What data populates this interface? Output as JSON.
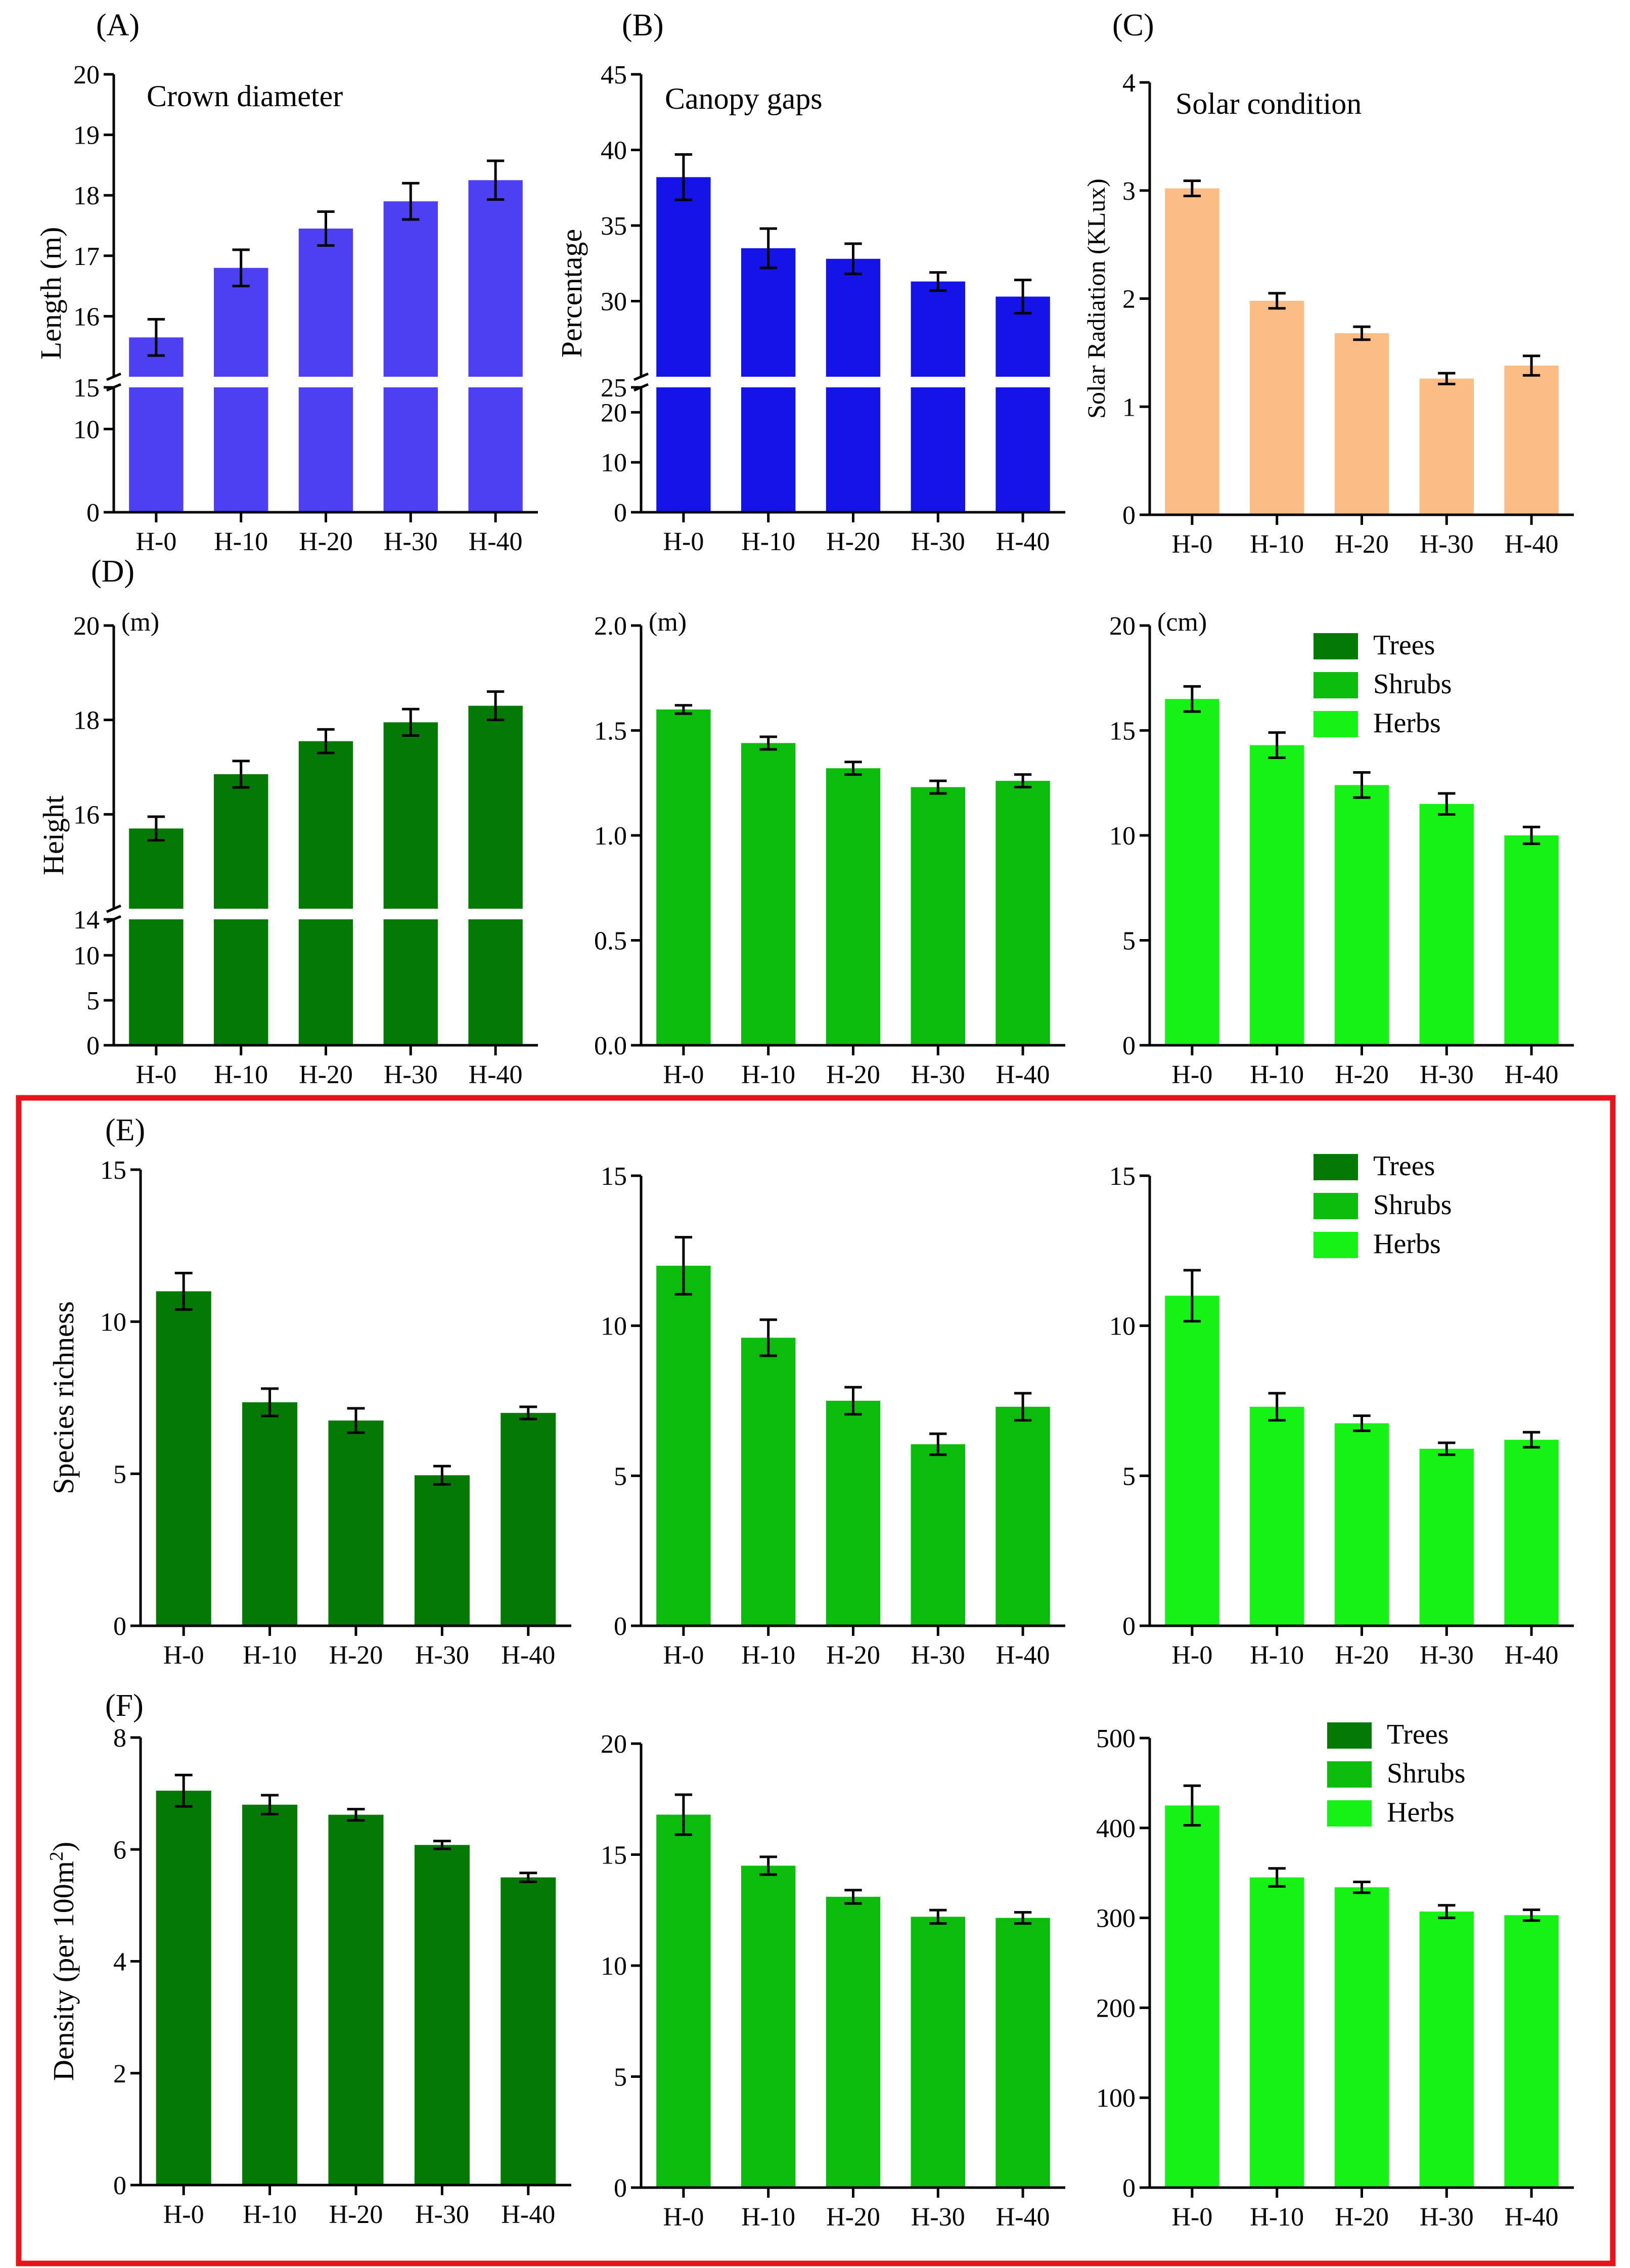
{
  "categories": [
    "H-0",
    "H-10",
    "H-20",
    "H-30",
    "H-40"
  ],
  "legend": {
    "items": [
      "Trees",
      "Shrubs",
      "Herbs"
    ],
    "colors": [
      "#047a04",
      "#0cbc0c",
      "#16f216"
    ]
  },
  "highlight_color": "#e8141c",
  "chart_data": [
    {
      "id": "A",
      "type": "bar",
      "letter": "(A)",
      "title": "Crown diameter",
      "ylabel": "Length (m)",
      "unit": "",
      "color": "#4c40f2",
      "values": [
        15.65,
        16.8,
        17.45,
        17.9,
        18.25
      ],
      "errors": [
        0.3,
        0.3,
        0.28,
        0.3,
        0.32
      ],
      "broken": true,
      "ylim_low": [
        0,
        15
      ],
      "ticks_low": [
        0,
        10
      ],
      "ylim_high": [
        15,
        20
      ],
      "ticks_high": [
        15,
        16,
        17,
        18,
        19,
        20
      ],
      "tick_decimals": 0
    },
    {
      "id": "B",
      "type": "bar",
      "letter": "(B)",
      "title": "Canopy gaps",
      "ylabel": "Percentage",
      "unit": "",
      "color": "#1414e8",
      "values": [
        38.2,
        33.5,
        32.8,
        31.3,
        30.3
      ],
      "errors": [
        1.5,
        1.3,
        1.0,
        0.6,
        1.1
      ],
      "broken": true,
      "ylim_low": [
        0,
        25
      ],
      "ticks_low": [
        0,
        10,
        20
      ],
      "ylim_high": [
        25,
        45
      ],
      "ticks_high": [
        25,
        30,
        35,
        40,
        45
      ],
      "tick_decimals": 0
    },
    {
      "id": "C",
      "type": "bar",
      "letter": "(C)",
      "title": "Solar condition",
      "ylabel": "Solar Radiation (KLux)",
      "unit": "",
      "color": "#fcbd84",
      "values": [
        3.02,
        1.98,
        1.68,
        1.26,
        1.38
      ],
      "errors": [
        0.07,
        0.07,
        0.06,
        0.05,
        0.09
      ],
      "broken": false,
      "ylim": [
        0,
        4
      ],
      "ticks": [
        0,
        1,
        2,
        3,
        4
      ],
      "tick_decimals": 0
    },
    {
      "id": "D1",
      "type": "bar",
      "letter": "(D)",
      "title": "",
      "ylabel": "Height",
      "unit": "(m)",
      "color": "#047a04",
      "values": [
        15.7,
        16.85,
        17.55,
        17.95,
        18.3
      ],
      "errors": [
        0.25,
        0.28,
        0.25,
        0.28,
        0.3
      ],
      "broken": true,
      "ylim_low": [
        0,
        14
      ],
      "ticks_low": [
        0,
        5,
        10
      ],
      "ylim_high": [
        14,
        20
      ],
      "ticks_high": [
        14,
        16,
        18,
        20
      ],
      "tick_decimals": 0
    },
    {
      "id": "D2",
      "type": "bar",
      "letter": "",
      "title": "",
      "ylabel": "",
      "unit": "(m)",
      "color": "#0cbc0c",
      "values": [
        1.6,
        1.44,
        1.32,
        1.23,
        1.26
      ],
      "errors": [
        0.02,
        0.03,
        0.03,
        0.03,
        0.03
      ],
      "broken": false,
      "ylim": [
        0,
        2
      ],
      "ticks": [
        0,
        0.5,
        1,
        1.5,
        2
      ],
      "tick_decimals": 1
    },
    {
      "id": "D3",
      "type": "bar",
      "letter": "",
      "title": "",
      "ylabel": "",
      "unit": "(cm)",
      "color": "#16f216",
      "values": [
        16.5,
        14.3,
        12.4,
        11.5,
        10.0
      ],
      "errors": [
        0.6,
        0.6,
        0.6,
        0.5,
        0.4
      ],
      "broken": false,
      "ylim": [
        0,
        20
      ],
      "ticks": [
        0,
        5,
        10,
        15,
        20
      ],
      "tick_decimals": 0,
      "legend": true
    },
    {
      "id": "E1",
      "type": "bar",
      "letter": "(E)",
      "title": "",
      "ylabel": "Species richness",
      "unit": "",
      "color": "#047a04",
      "values": [
        11.0,
        7.35,
        6.75,
        4.95,
        7.0
      ],
      "errors": [
        0.6,
        0.45,
        0.4,
        0.3,
        0.2
      ],
      "broken": false,
      "ylim": [
        0,
        15
      ],
      "ticks": [
        0,
        5,
        10,
        15
      ],
      "tick_decimals": 0
    },
    {
      "id": "E2",
      "type": "bar",
      "letter": "",
      "title": "",
      "ylabel": "",
      "unit": "",
      "color": "#0cbc0c",
      "values": [
        12.0,
        9.6,
        7.5,
        6.05,
        7.3
      ],
      "errors": [
        0.95,
        0.6,
        0.45,
        0.35,
        0.45
      ],
      "broken": false,
      "ylim": [
        0,
        15
      ],
      "ticks": [
        0,
        5,
        10,
        15
      ],
      "tick_decimals": 0
    },
    {
      "id": "E3",
      "type": "bar",
      "letter": "",
      "title": "",
      "ylabel": "",
      "unit": "",
      "color": "#16f216",
      "values": [
        11.0,
        7.3,
        6.75,
        5.9,
        6.2
      ],
      "errors": [
        0.85,
        0.45,
        0.25,
        0.2,
        0.25
      ],
      "broken": false,
      "ylim": [
        0,
        15
      ],
      "ticks": [
        0,
        5,
        10,
        15
      ],
      "tick_decimals": 0,
      "legend": true
    },
    {
      "id": "F1",
      "type": "bar",
      "letter": "(F)",
      "title": "",
      "ylabel": "Density (per 100m2)",
      "unit": "",
      "color": "#047a04",
      "values": [
        7.05,
        6.8,
        6.62,
        6.08,
        5.5
      ],
      "errors": [
        0.28,
        0.17,
        0.1,
        0.07,
        0.08
      ],
      "broken": false,
      "ylim": [
        0,
        8
      ],
      "ticks": [
        0,
        2,
        4,
        6,
        8
      ],
      "tick_decimals": 0
    },
    {
      "id": "F2",
      "type": "bar",
      "letter": "",
      "title": "",
      "ylabel": "",
      "unit": "",
      "color": "#0cbc0c",
      "values": [
        16.8,
        14.5,
        13.1,
        12.2,
        12.15
      ],
      "errors": [
        0.9,
        0.4,
        0.3,
        0.3,
        0.25
      ],
      "broken": false,
      "ylim": [
        0,
        20
      ],
      "ticks": [
        0,
        5,
        10,
        15,
        20
      ],
      "tick_decimals": 0
    },
    {
      "id": "F3",
      "type": "bar",
      "letter": "",
      "title": "",
      "ylabel": "",
      "unit": "",
      "color": "#16f216",
      "values": [
        425,
        345,
        334,
        307,
        303
      ],
      "errors": [
        22,
        10,
        6,
        7,
        6
      ],
      "broken": false,
      "ylim": [
        0,
        500
      ],
      "ticks": [
        0,
        100,
        200,
        300,
        400,
        500
      ],
      "tick_decimals": 0,
      "legend": true
    }
  ]
}
